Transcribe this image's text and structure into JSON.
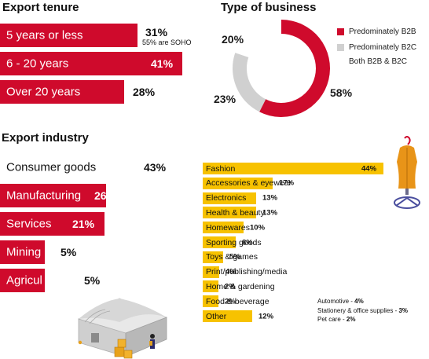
{
  "export_tenure": {
    "heading": "Export tenure",
    "note": "55% are SOHO"
  },
  "type_of_business": {
    "heading": "Type of business"
  },
  "export_industry": {
    "heading": "Export industry"
  },
  "colors": {
    "red": "#cf0a2c",
    "gray": "#d0d0d0",
    "yellow": "#f7c200"
  },
  "chart_data": [
    {
      "type": "bar",
      "title": "Export tenure",
      "orientation": "horizontal",
      "categories": [
        "5 years or less",
        "6 - 20 years",
        "Over 20 years"
      ],
      "values": [
        31,
        41,
        28
      ],
      "value_labels": [
        "31%",
        "41%",
        "28%"
      ],
      "annotations": [
        "55% are SOHO"
      ]
    },
    {
      "type": "pie",
      "donut": true,
      "title": "Type of business",
      "labels": [
        "Predominately B2B",
        "Predominately B2C",
        "Both B2B & B2C"
      ],
      "values": [
        58,
        23,
        20
      ],
      "value_labels": [
        "58%",
        "23%",
        "20%"
      ],
      "colors": [
        "#cf0a2c",
        "#d0d0d0",
        "#ffffff"
      ],
      "legend": "right"
    },
    {
      "type": "bar",
      "title": "Export industry",
      "orientation": "horizontal",
      "categories": [
        "Consumer goods",
        "Manufacturing",
        "Services",
        "Mining",
        "Agricul"
      ],
      "values": [
        43,
        26,
        21,
        5,
        5
      ],
      "value_labels": [
        "43%",
        "26%",
        "21%",
        "5%",
        "5%"
      ]
    },
    {
      "type": "bar",
      "orientation": "horizontal",
      "categories": [
        "Fashion",
        "Accessories & eyewear",
        "Electronics",
        "Health & beauty",
        "Homewares",
        "Sporting goods",
        "Toys & games",
        "Print/publishing/media",
        "Home & gardening",
        "Food & beverage",
        "Other"
      ],
      "values": [
        44,
        17,
        13,
        13,
        10,
        8,
        5,
        4,
        2,
        2,
        12
      ],
      "value_labels": [
        "44%",
        "17%",
        "13%",
        "13%",
        "10%",
        "8%",
        "5%",
        "4%",
        "2%",
        "2%",
        "12%"
      ],
      "annotations": [
        {
          "label": "Automotive - ",
          "value": "4%"
        },
        {
          "label": "Stationery & office supplies - ",
          "value": "3%"
        },
        {
          "label": "Pet care - ",
          "value": "2%"
        }
      ]
    }
  ]
}
